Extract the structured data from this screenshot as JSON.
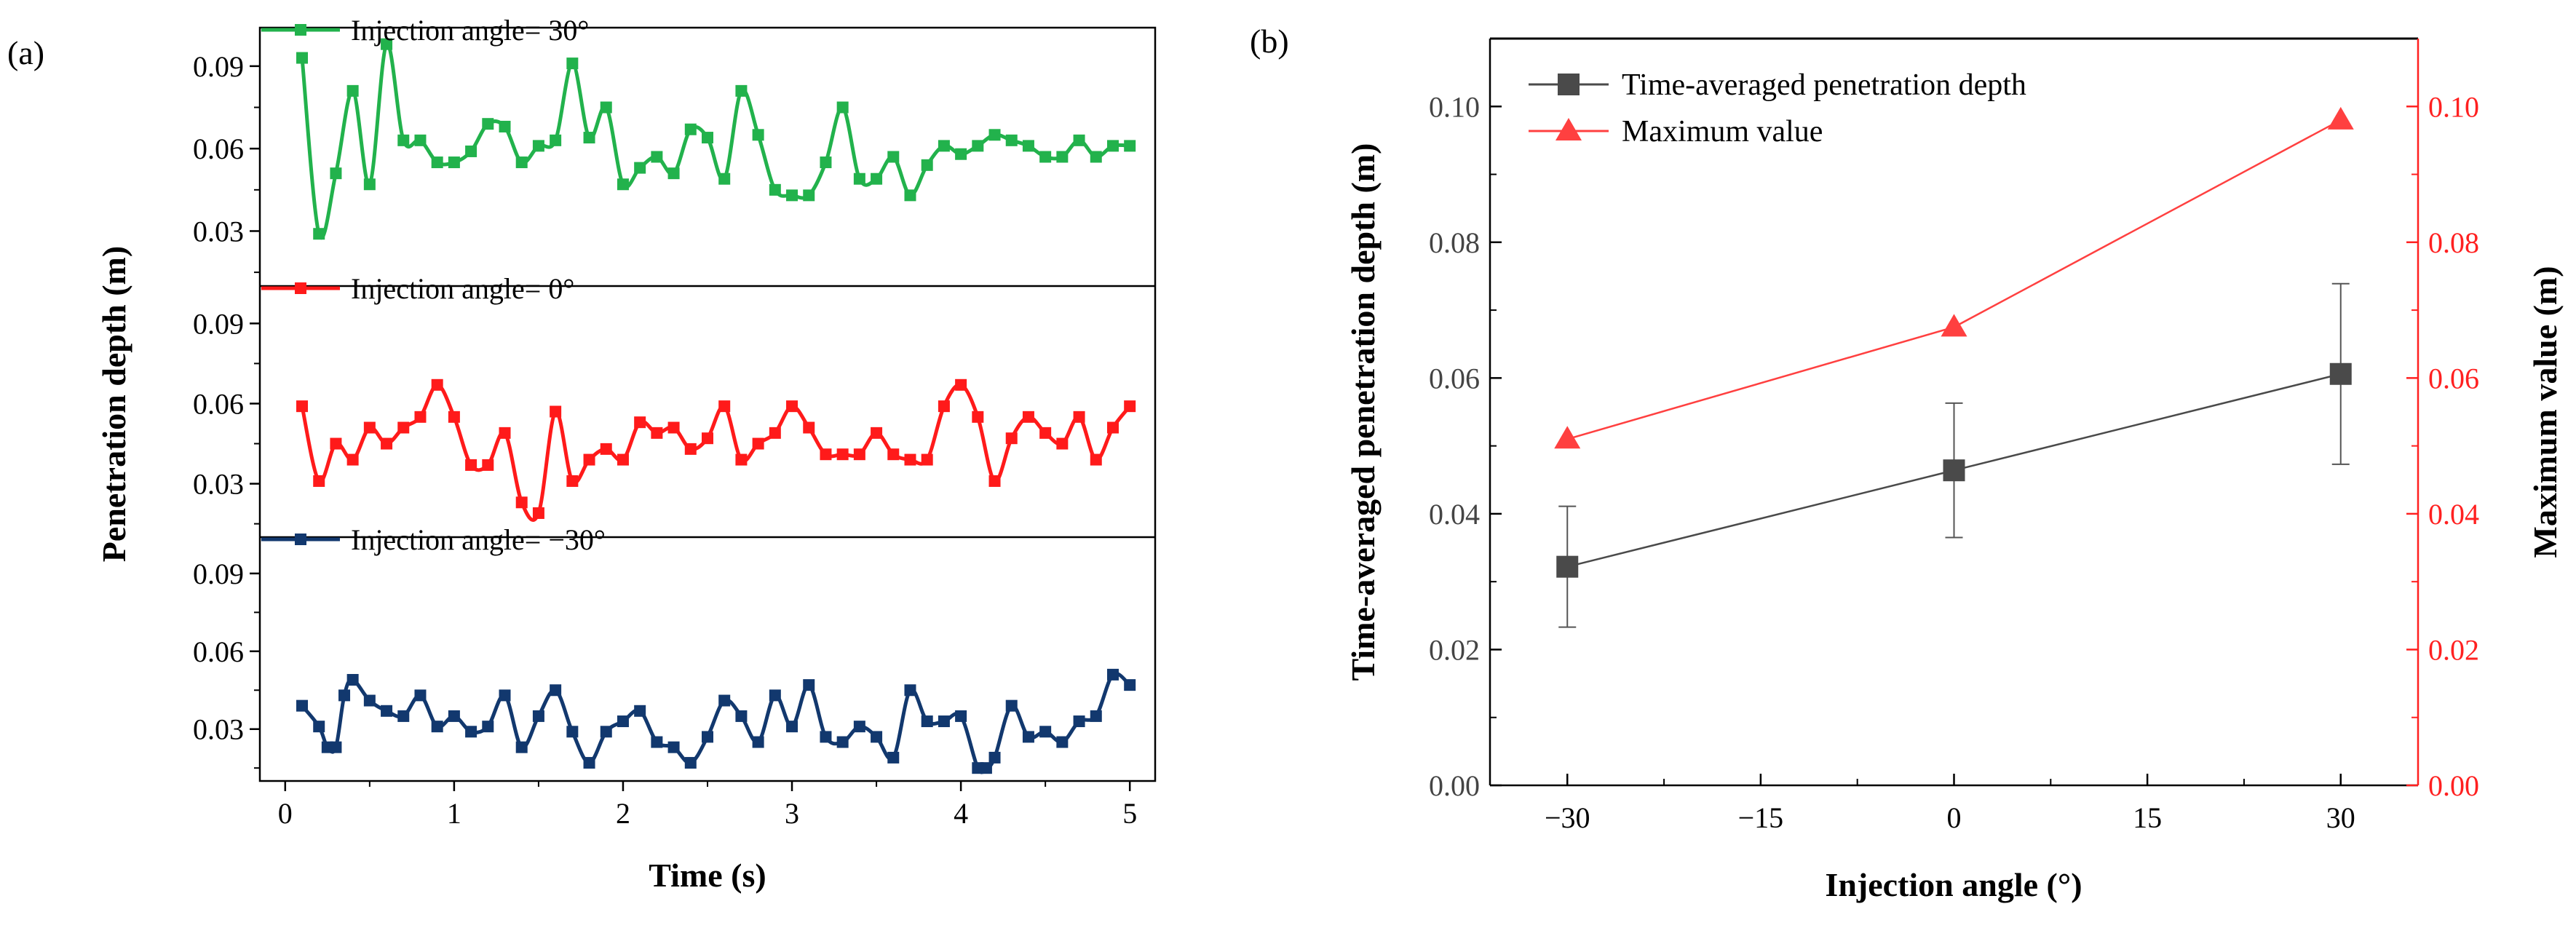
{
  "colors": {
    "green": "#22b24c",
    "red": "#ff1a1a",
    "navy": "#12386e",
    "dark": "#4a4a4a",
    "max_red": "#ff4040",
    "axis_red": "#ff2020"
  },
  "panel_a": {
    "label": "(a)",
    "xlabel": "Time (s)",
    "ylabel": "Penetration depth (m)",
    "x_ticks": [
      "0",
      "1",
      "2",
      "3",
      "4",
      "5"
    ],
    "y_ticks": [
      "0.03",
      "0.06",
      "0.09"
    ]
  },
  "panel_b": {
    "label": "(b)",
    "xlabel": "Injection angle (°)",
    "ylabel_left": "Time-averaged penetration depth (m)",
    "ylabel_right": "Maximum value (m)",
    "x_ticks": [
      "−30",
      "−15",
      "0",
      "15",
      "30"
    ],
    "y_ticks_left": [
      "0.00",
      "0.02",
      "0.04",
      "0.06",
      "0.08",
      "0.10"
    ],
    "y_ticks_right": [
      "0.00",
      "0.02",
      "0.04",
      "0.06",
      "0.08",
      "0.10"
    ]
  },
  "chart_data": [
    {
      "type": "line",
      "panel": "a",
      "xlabel": "Time (s)",
      "ylabel": "Penetration depth (m)",
      "xlim": [
        -0.15,
        5.15
      ],
      "series": [
        {
          "name": "Injection angle= 30°",
          "color": "#22b24c",
          "ylim": [
            0.01,
            0.104
          ],
          "x": [
            0.1,
            0.2,
            0.3,
            0.4,
            0.5,
            0.6,
            0.7,
            0.8,
            0.9,
            1.0,
            1.1,
            1.2,
            1.3,
            1.4,
            1.5,
            1.6,
            1.7,
            1.8,
            1.9,
            2.0,
            2.1,
            2.2,
            2.3,
            2.4,
            2.5,
            2.6,
            2.7,
            2.8,
            2.9,
            3.0,
            3.1,
            3.2,
            3.3,
            3.4,
            3.5,
            3.6,
            3.7,
            3.8,
            3.9,
            4.0,
            4.1,
            4.2,
            4.3,
            4.4,
            4.5,
            4.6,
            4.7,
            4.8,
            4.9,
            5.0
          ],
          "y": [
            0.093,
            0.029,
            0.051,
            0.081,
            0.047,
            0.098,
            0.063,
            0.063,
            0.055,
            0.055,
            0.059,
            0.069,
            0.068,
            0.055,
            0.061,
            0.063,
            0.091,
            0.064,
            0.075,
            0.047,
            0.053,
            0.057,
            0.051,
            0.067,
            0.064,
            0.049,
            0.081,
            0.065,
            0.045,
            0.043,
            0.043,
            0.055,
            0.075,
            0.049,
            0.049,
            0.057,
            0.043,
            0.054,
            0.061,
            0.058,
            0.061,
            0.065,
            0.063,
            0.061,
            0.057,
            0.057,
            0.063,
            0.057,
            0.061,
            0.061
          ]
        },
        {
          "name": "Injection angle= 0°",
          "color": "#ff1a1a",
          "ylim": [
            0.01,
            0.104
          ],
          "x": [
            0.1,
            0.2,
            0.3,
            0.4,
            0.5,
            0.6,
            0.7,
            0.8,
            0.9,
            1.0,
            1.1,
            1.2,
            1.3,
            1.4,
            1.5,
            1.6,
            1.7,
            1.8,
            1.9,
            2.0,
            2.1,
            2.2,
            2.3,
            2.4,
            2.5,
            2.6,
            2.7,
            2.8,
            2.9,
            3.0,
            3.1,
            3.2,
            3.3,
            3.4,
            3.5,
            3.6,
            3.7,
            3.8,
            3.9,
            4.0,
            4.1,
            4.2,
            4.3,
            4.4,
            4.5,
            4.6,
            4.7,
            4.8,
            4.9,
            5.0
          ],
          "y": [
            0.059,
            0.031,
            0.045,
            0.039,
            0.051,
            0.045,
            0.051,
            0.055,
            0.067,
            0.055,
            0.037,
            0.037,
            0.049,
            0.023,
            0.019,
            0.057,
            0.031,
            0.039,
            0.043,
            0.039,
            0.053,
            0.049,
            0.051,
            0.043,
            0.047,
            0.059,
            0.039,
            0.045,
            0.049,
            0.059,
            0.051,
            0.041,
            0.041,
            0.041,
            0.049,
            0.041,
            0.039,
            0.039,
            0.059,
            0.067,
            0.055,
            0.031,
            0.047,
            0.055,
            0.049,
            0.045,
            0.055,
            0.039,
            0.051,
            0.059
          ]
        },
        {
          "name": "Injection angle= −30°",
          "color": "#12386e",
          "ylim": [
            0.01,
            0.104
          ],
          "x": [
            0.1,
            0.2,
            0.25,
            0.3,
            0.35,
            0.4,
            0.5,
            0.6,
            0.7,
            0.8,
            0.9,
            1.0,
            1.1,
            1.2,
            1.3,
            1.4,
            1.5,
            1.6,
            1.7,
            1.8,
            1.9,
            2.0,
            2.1,
            2.2,
            2.3,
            2.4,
            2.5,
            2.6,
            2.7,
            2.8,
            2.9,
            3.0,
            3.1,
            3.2,
            3.3,
            3.4,
            3.5,
            3.6,
            3.7,
            3.8,
            3.9,
            4.0,
            4.1,
            4.15,
            4.2,
            4.3,
            4.4,
            4.5,
            4.6,
            4.7,
            4.8,
            4.9,
            5.0
          ],
          "y": [
            0.039,
            0.031,
            0.023,
            0.023,
            0.043,
            0.049,
            0.041,
            0.037,
            0.035,
            0.043,
            0.031,
            0.035,
            0.029,
            0.031,
            0.043,
            0.023,
            0.035,
            0.045,
            0.029,
            0.017,
            0.029,
            0.033,
            0.037,
            0.025,
            0.023,
            0.017,
            0.027,
            0.041,
            0.035,
            0.025,
            0.043,
            0.031,
            0.047,
            0.027,
            0.025,
            0.031,
            0.027,
            0.019,
            0.045,
            0.033,
            0.033,
            0.035,
            0.015,
            0.015,
            0.019,
            0.039,
            0.027,
            0.029,
            0.025,
            0.033,
            0.035,
            0.051,
            0.047
          ]
        }
      ]
    },
    {
      "type": "line",
      "panel": "b",
      "xlabel": "Injection angle (°)",
      "ylabel": "Time-averaged penetration depth (m)",
      "ylabel_right": "Maximum value (m)",
      "xlim": [
        -36,
        36
      ],
      "ylim": [
        0,
        0.11
      ],
      "ylim_right": [
        0,
        0.11
      ],
      "legend_position": "top-left",
      "series": [
        {
          "name": "Time-averaged penetration depth",
          "color": "#4a4a4a",
          "marker": "square",
          "axis": "left",
          "x": [
            -30,
            0,
            30
          ],
          "y": [
            0.0322,
            0.0464,
            0.0606
          ],
          "error": [
            0.0089,
            0.0099,
            0.0133
          ]
        },
        {
          "name": "Maximum value",
          "color": "#ff4040",
          "marker": "triangle",
          "axis": "right",
          "x": [
            -30,
            0,
            30
          ],
          "y": [
            0.051,
            0.0675,
            0.098
          ]
        }
      ]
    }
  ]
}
